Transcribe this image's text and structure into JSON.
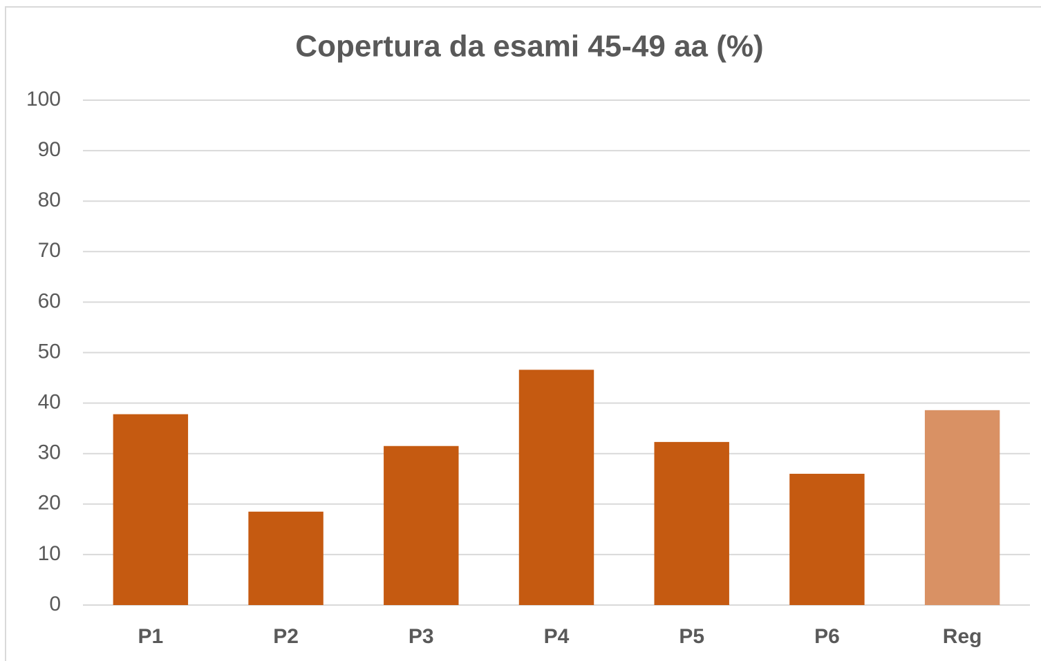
{
  "chart_data": {
    "type": "bar",
    "title": "Copertura da esami 45-49 aa (%)",
    "categories": [
      "P1",
      "P2",
      "P3",
      "P4",
      "P5",
      "P6",
      "Reg"
    ],
    "values": [
      37.8,
      18.5,
      31.5,
      46.6,
      32.3,
      26.0,
      38.6
    ],
    "colors": [
      "#c55a11",
      "#c55a11",
      "#c55a11",
      "#c55a11",
      "#c55a11",
      "#c55a11",
      "#d99164"
    ],
    "ylim": [
      0,
      100
    ],
    "yticks": [
      0,
      10,
      20,
      30,
      40,
      50,
      60,
      70,
      80,
      90,
      100
    ],
    "grid": true
  }
}
